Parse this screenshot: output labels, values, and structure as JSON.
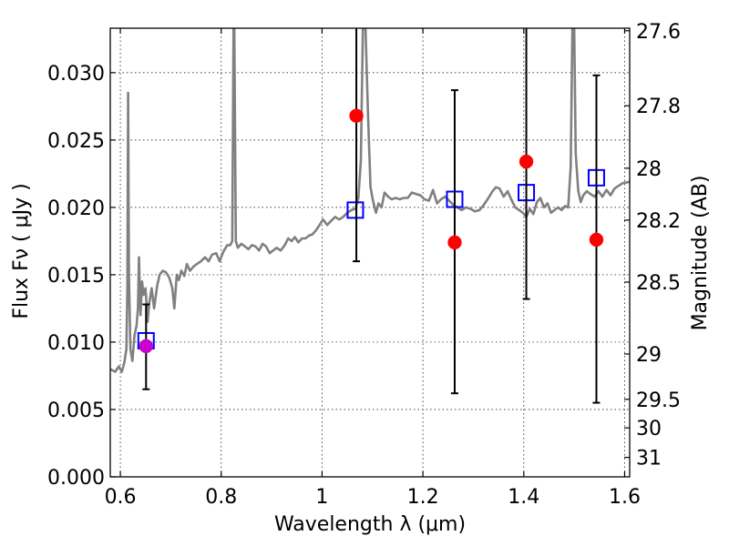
{
  "chart_data": {
    "type": "scatter",
    "xlabel": "Wavelength  λ (μm)",
    "ylabel": "Flux  Fν  ( μJy )",
    "ylabel_right": "Magnitude (AB)",
    "xlim": [
      0.58,
      1.61
    ],
    "ylim": [
      0.0,
      0.0333
    ],
    "grid": true,
    "x_ticks": [
      0.6,
      0.8,
      1.0,
      1.2,
      1.4,
      1.6
    ],
    "x_tick_labels": [
      "0.6",
      "0.8",
      "1",
      "1.2",
      "1.4",
      "1.6"
    ],
    "y_ticks": [
      0.0,
      0.005,
      0.01,
      0.015,
      0.02,
      0.025,
      0.03
    ],
    "y_tick_labels": [
      "0.000",
      "0.005",
      "0.010",
      "0.015",
      "0.020",
      "0.025",
      "0.030"
    ],
    "right_ticks": [
      {
        "label": "27.6",
        "mag": 27.6
      },
      {
        "label": "27.8",
        "mag": 27.8
      },
      {
        "label": "28",
        "mag": 28.0
      },
      {
        "label": "28.2",
        "mag": 28.2
      },
      {
        "label": "28.5",
        "mag": 28.5
      },
      {
        "label": "29",
        "mag": 29.0
      },
      {
        "label": "29.5",
        "mag": 29.5
      },
      {
        "label": "30",
        "mag": 30.0
      },
      {
        "label": "31",
        "mag": 31.0
      }
    ],
    "series": [
      {
        "kind": "line",
        "color": "#808080",
        "points": [
          [
            0.58,
            0.008
          ],
          [
            0.59,
            0.0078
          ],
          [
            0.597,
            0.0082
          ],
          [
            0.603,
            0.0078
          ],
          [
            0.608,
            0.0085
          ],
          [
            0.612,
            0.0095
          ],
          [
            0.614,
            0.014
          ],
          [
            0.6155,
            0.0285
          ],
          [
            0.617,
            0.015
          ],
          [
            0.62,
            0.0095
          ],
          [
            0.624,
            0.0086
          ],
          [
            0.628,
            0.0105
          ],
          [
            0.632,
            0.0112
          ],
          [
            0.635,
            0.0125
          ],
          [
            0.637,
            0.0163
          ],
          [
            0.64,
            0.012
          ],
          [
            0.643,
            0.0145
          ],
          [
            0.646,
            0.0135
          ],
          [
            0.65,
            0.014
          ],
          [
            0.654,
            0.0115
          ],
          [
            0.657,
            0.0128
          ],
          [
            0.662,
            0.014
          ],
          [
            0.667,
            0.0125
          ],
          [
            0.673,
            0.0142
          ],
          [
            0.678,
            0.015
          ],
          [
            0.684,
            0.0153
          ],
          [
            0.69,
            0.0152
          ],
          [
            0.697,
            0.0148
          ],
          [
            0.703,
            0.014
          ],
          [
            0.707,
            0.0125
          ],
          [
            0.712,
            0.015
          ],
          [
            0.716,
            0.0146
          ],
          [
            0.721,
            0.0153
          ],
          [
            0.727,
            0.0149
          ],
          [
            0.732,
            0.0158
          ],
          [
            0.738,
            0.0153
          ],
          [
            0.745,
            0.0156
          ],
          [
            0.752,
            0.0158
          ],
          [
            0.76,
            0.016
          ],
          [
            0.768,
            0.0163
          ],
          [
            0.775,
            0.016
          ],
          [
            0.782,
            0.0165
          ],
          [
            0.79,
            0.0166
          ],
          [
            0.797,
            0.016
          ],
          [
            0.804,
            0.0167
          ],
          [
            0.812,
            0.0172
          ],
          [
            0.818,
            0.0172
          ],
          [
            0.822,
            0.0175
          ],
          [
            0.8245,
            0.0335
          ],
          [
            0.826,
            0.0335
          ],
          [
            0.829,
            0.0175
          ],
          [
            0.833,
            0.017
          ],
          [
            0.84,
            0.0173
          ],
          [
            0.847,
            0.0171
          ],
          [
            0.854,
            0.0169
          ],
          [
            0.861,
            0.0172
          ],
          [
            0.868,
            0.0171
          ],
          [
            0.875,
            0.0168
          ],
          [
            0.882,
            0.0173
          ],
          [
            0.889,
            0.0171
          ],
          [
            0.896,
            0.0166
          ],
          [
            0.903,
            0.0168
          ],
          [
            0.91,
            0.017
          ],
          [
            0.918,
            0.0168
          ],
          [
            0.926,
            0.0172
          ],
          [
            0.933,
            0.0177
          ],
          [
            0.94,
            0.0175
          ],
          [
            0.946,
            0.0178
          ],
          [
            0.953,
            0.0174
          ],
          [
            0.96,
            0.0177
          ],
          [
            0.967,
            0.0177
          ],
          [
            0.974,
            0.0179
          ],
          [
            0.981,
            0.018
          ],
          [
            0.988,
            0.0183
          ],
          [
            0.995,
            0.0187
          ],
          [
            1.002,
            0.0191
          ],
          [
            1.01,
            0.0187
          ],
          [
            1.018,
            0.019
          ],
          [
            1.026,
            0.0193
          ],
          [
            1.034,
            0.0191
          ],
          [
            1.042,
            0.0193
          ],
          [
            1.05,
            0.0196
          ],
          [
            1.058,
            0.0198
          ],
          [
            1.066,
            0.0199
          ],
          [
            1.072,
            0.0207
          ],
          [
            1.077,
            0.0235
          ],
          [
            1.081,
            0.0335
          ],
          [
            1.086,
            0.0335
          ],
          [
            1.091,
            0.027
          ],
          [
            1.096,
            0.0215
          ],
          [
            1.101,
            0.0205
          ],
          [
            1.107,
            0.0196
          ],
          [
            1.112,
            0.0203
          ],
          [
            1.118,
            0.02
          ],
          [
            1.124,
            0.0211
          ],
          [
            1.131,
            0.0208
          ],
          [
            1.138,
            0.0206
          ],
          [
            1.146,
            0.0207
          ],
          [
            1.154,
            0.0206
          ],
          [
            1.162,
            0.0207
          ],
          [
            1.17,
            0.0207
          ],
          [
            1.178,
            0.0211
          ],
          [
            1.186,
            0.021
          ],
          [
            1.195,
            0.0209
          ],
          [
            1.203,
            0.0206
          ],
          [
            1.212,
            0.0205
          ],
          [
            1.22,
            0.0213
          ],
          [
            1.228,
            0.0203
          ],
          [
            1.236,
            0.0206
          ],
          [
            1.244,
            0.0208
          ],
          [
            1.252,
            0.0205
          ],
          [
            1.26,
            0.0202
          ],
          [
            1.268,
            0.02
          ],
          [
            1.277,
            0.0198
          ],
          [
            1.285,
            0.02
          ],
          [
            1.294,
            0.0199
          ],
          [
            1.303,
            0.0197
          ],
          [
            1.312,
            0.0198
          ],
          [
            1.321,
            0.0202
          ],
          [
            1.33,
            0.0207
          ],
          [
            1.338,
            0.0212
          ],
          [
            1.345,
            0.0215
          ],
          [
            1.352,
            0.0214
          ],
          [
            1.36,
            0.0208
          ],
          [
            1.368,
            0.0212
          ],
          [
            1.375,
            0.0206
          ],
          [
            1.383,
            0.02
          ],
          [
            1.391,
            0.0198
          ],
          [
            1.398,
            0.0196
          ],
          [
            1.405,
            0.0193
          ],
          [
            1.412,
            0.0199
          ],
          [
            1.419,
            0.0195
          ],
          [
            1.426,
            0.0204
          ],
          [
            1.433,
            0.0207
          ],
          [
            1.44,
            0.02
          ],
          [
            1.447,
            0.0203
          ],
          [
            1.454,
            0.0196
          ],
          [
            1.461,
            0.0198
          ],
          [
            1.468,
            0.02
          ],
          [
            1.475,
            0.0198
          ],
          [
            1.482,
            0.0201
          ],
          [
            1.488,
            0.02
          ],
          [
            1.493,
            0.023
          ],
          [
            1.4965,
            0.0335
          ],
          [
            1.5,
            0.0335
          ],
          [
            1.503,
            0.024
          ],
          [
            1.508,
            0.0212
          ],
          [
            1.513,
            0.0204
          ],
          [
            1.518,
            0.0209
          ],
          [
            1.525,
            0.0212
          ],
          [
            1.532,
            0.021
          ],
          [
            1.54,
            0.0208
          ],
          [
            1.548,
            0.0212
          ],
          [
            1.556,
            0.0208
          ],
          [
            1.564,
            0.0213
          ],
          [
            1.572,
            0.0209
          ],
          [
            1.58,
            0.0214
          ],
          [
            1.588,
            0.0216
          ],
          [
            1.596,
            0.0218
          ],
          [
            1.61,
            0.0219
          ]
        ]
      },
      {
        "kind": "open-square",
        "color": "#0000ff",
        "points": [
          [
            0.651,
            0.0101
          ],
          [
            1.066,
            0.0198
          ],
          [
            1.263,
            0.0206
          ],
          [
            1.405,
            0.0211
          ],
          [
            1.544,
            0.0222
          ]
        ]
      },
      {
        "kind": "dot-with-errorbar",
        "color": "#ff0000",
        "points": [
          {
            "x": 1.068,
            "y": 0.0268,
            "lo": 0.016,
            "hi": 0.0337
          },
          {
            "x": 1.263,
            "y": 0.0174,
            "lo": 0.0062,
            "hi": 0.0287
          },
          {
            "x": 1.405,
            "y": 0.0234,
            "lo": 0.0132,
            "hi": 0.0337
          },
          {
            "x": 1.544,
            "y": 0.0176,
            "lo": 0.0055,
            "hi": 0.0298
          }
        ]
      },
      {
        "kind": "dot-with-errorbar",
        "color": "#cc00cc",
        "points": [
          {
            "x": 0.651,
            "y": 0.0097,
            "lo": 0.0065,
            "hi": 0.0128
          }
        ]
      }
    ]
  }
}
